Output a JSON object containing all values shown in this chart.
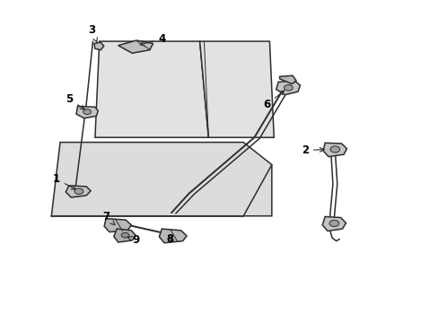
{
  "background_color": "#ffffff",
  "line_color": "#2d2d2d",
  "label_color": "#000000",
  "figsize": [
    4.89,
    3.6
  ],
  "dpi": 100
}
